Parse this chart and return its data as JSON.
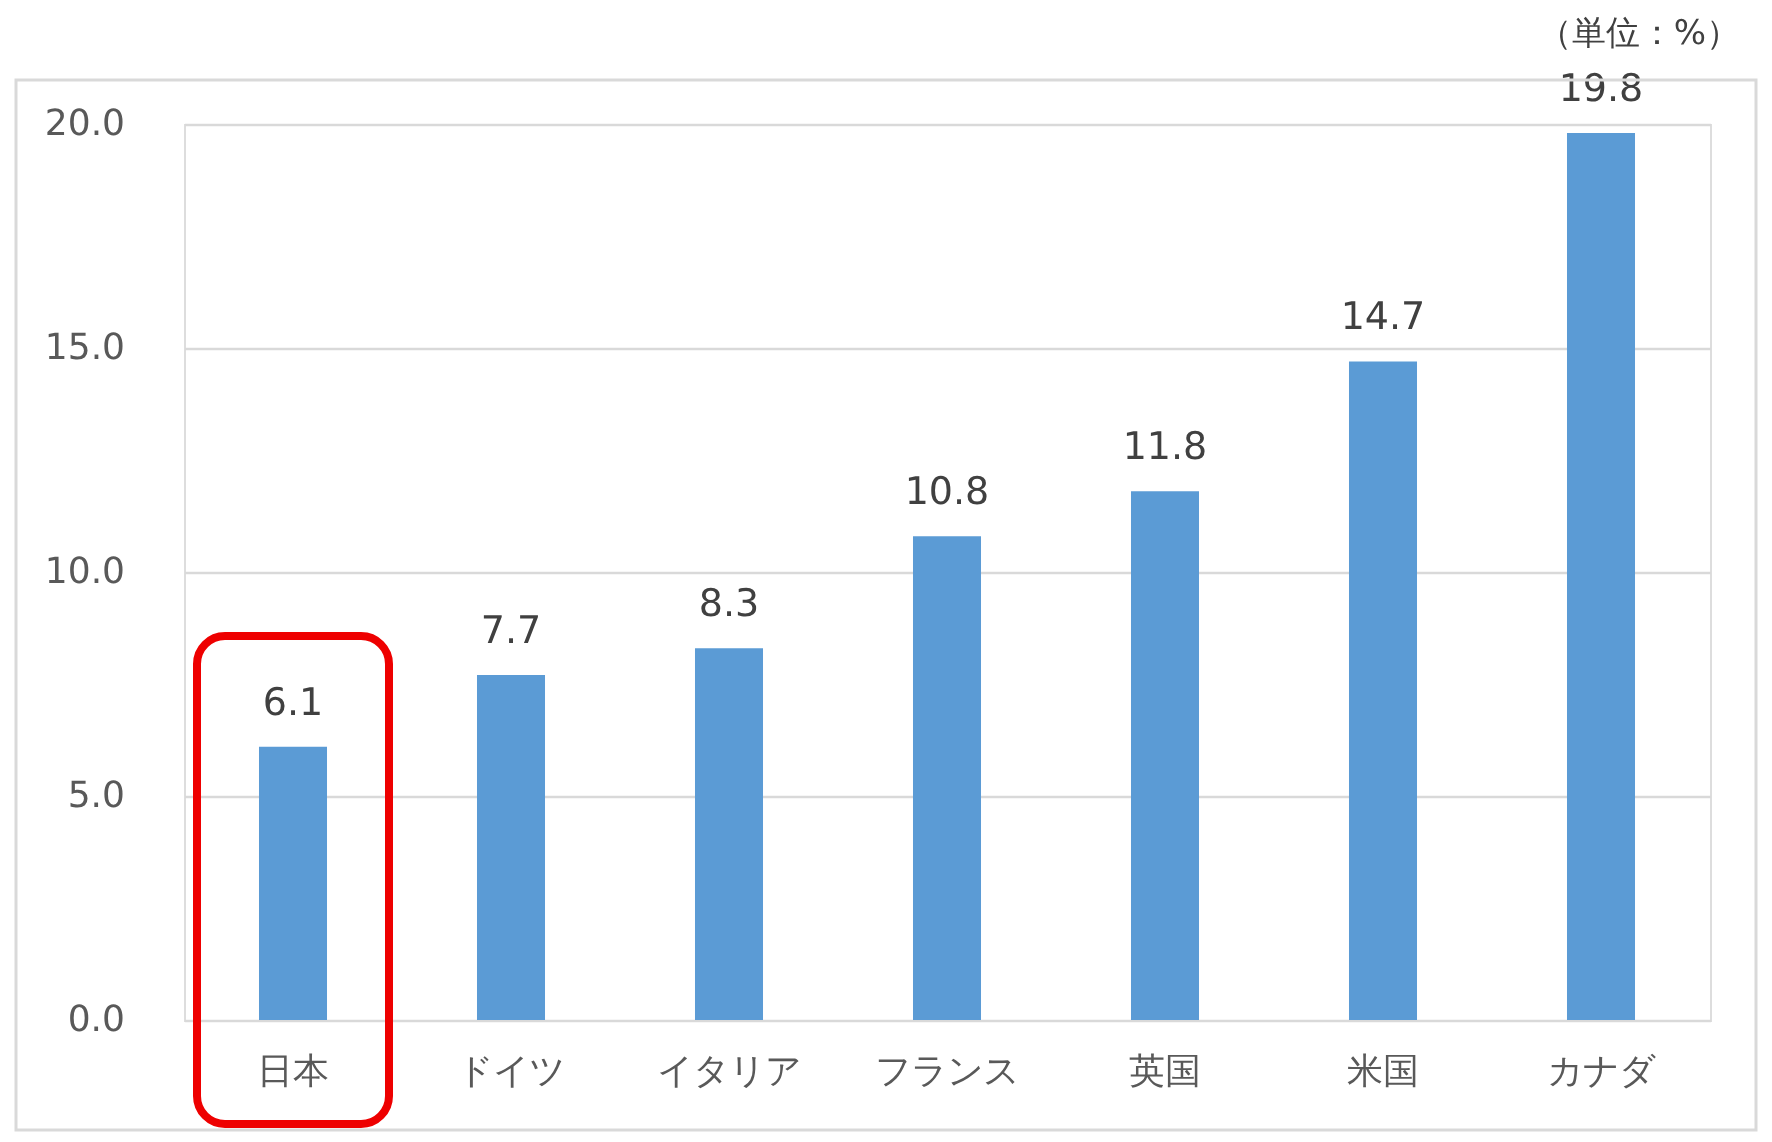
{
  "chart_data": {
    "type": "bar",
    "categories": [
      "日本",
      "ドイツ",
      "イタリア",
      "フランス",
      "英国",
      "米国",
      "カナダ"
    ],
    "values": [
      6.1,
      7.7,
      8.3,
      10.8,
      11.8,
      14.7,
      19.8
    ],
    "color": "#5b9bd5",
    "ylim": [
      0,
      20
    ],
    "yticks": [
      {
        "value": 0,
        "label": "0.0"
      },
      {
        "value": 5,
        "label": "5.0"
      },
      {
        "value": 10,
        "label": "10.0"
      },
      {
        "value": 15,
        "label": "15.0"
      },
      {
        "value": 20,
        "label": "20.0"
      }
    ],
    "grid": "y",
    "data_labels": true,
    "annotations": [
      "（単位：%）"
    ]
  }
}
